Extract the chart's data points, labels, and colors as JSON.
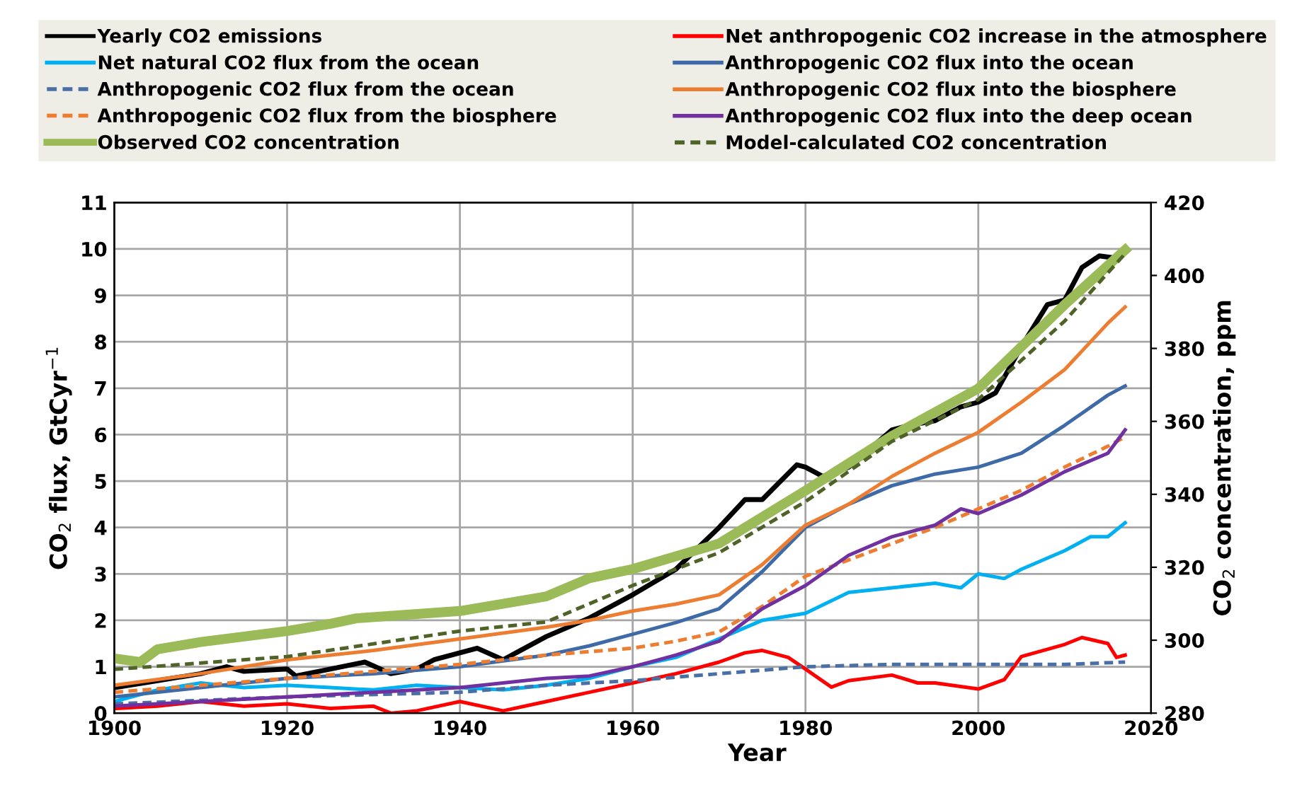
{
  "chart_data": {
    "type": "line",
    "xlabel": "Year",
    "ylabel": "CO$_{2}$ flux, GtCyr$^{−1}$",
    "y2label": "CO$_{2}$ concentration, ppm",
    "xlim": [
      1900,
      2020
    ],
    "xticks": [
      1900,
      1920,
      1940,
      1960,
      1980,
      2000,
      2020
    ],
    "ylim": [
      0,
      11
    ],
    "yticks": [
      0,
      1,
      2,
      3,
      4,
      5,
      6,
      7,
      8,
      9,
      10,
      11
    ],
    "y2lim": [
      280,
      420
    ],
    "y2ticks": [
      280,
      300,
      320,
      340,
      360,
      380,
      400,
      420
    ],
    "grid": true,
    "legend": "top",
    "marker": "none",
    "series": [
      {
        "name": "Yearly CO2 emissions",
        "color": "#000000",
        "line_style": "solid",
        "x": [
          1900,
          1905,
          1910,
          1913,
          1915,
          1920,
          1921,
          1925,
          1929,
          1932,
          1935,
          1937,
          1940,
          1942,
          1945,
          1947,
          1950,
          1955,
          1960,
          1965,
          1970,
          1973,
          1975,
          1979,
          1980,
          1982,
          1985,
          1990,
          1992,
          1995,
          1998,
          2000,
          2002,
          2005,
          2008,
          2010,
          2012,
          2014,
          2016,
          2017
        ],
        "values": [
          0.55,
          0.7,
          0.85,
          1.0,
          0.9,
          0.95,
          0.8,
          0.95,
          1.1,
          0.85,
          0.95,
          1.15,
          1.3,
          1.4,
          1.15,
          1.35,
          1.65,
          2.05,
          2.55,
          3.1,
          4.0,
          4.6,
          4.6,
          5.35,
          5.3,
          5.1,
          5.3,
          6.1,
          6.2,
          6.3,
          6.6,
          6.7,
          6.9,
          7.9,
          8.8,
          8.9,
          9.6,
          9.85,
          9.8,
          10.0
        ]
      },
      {
        "name": "Net anthropogenic CO2 increase in the atmosphere",
        "color": "#ff0000",
        "line_style": "solid",
        "x": [
          1900,
          1905,
          1910,
          1915,
          1920,
          1925,
          1930,
          1932,
          1935,
          1940,
          1945,
          1950,
          1955,
          1960,
          1965,
          1970,
          1973,
          1975,
          1978,
          1980,
          1983,
          1985,
          1990,
          1993,
          1995,
          2000,
          2003,
          2005,
          2010,
          2012,
          2015,
          2016,
          2017
        ],
        "values": [
          0.1,
          0.15,
          0.25,
          0.15,
          0.2,
          0.1,
          0.15,
          0.0,
          0.05,
          0.25,
          0.05,
          0.25,
          0.45,
          0.65,
          0.85,
          1.1,
          1.3,
          1.35,
          1.2,
          0.95,
          0.56,
          0.7,
          0.82,
          0.65,
          0.65,
          0.52,
          0.72,
          1.22,
          1.48,
          1.63,
          1.5,
          1.2,
          1.25
        ]
      },
      {
        "name": "Net natural CO2 flux from the ocean",
        "color": "#00b0f0",
        "line_style": "solid",
        "x": [
          1900,
          1905,
          1910,
          1915,
          1920,
          1925,
          1930,
          1935,
          1940,
          1945,
          1950,
          1955,
          1960,
          1965,
          1970,
          1975,
          1980,
          1985,
          1990,
          1995,
          1998,
          2000,
          2003,
          2005,
          2010,
          2013,
          2015,
          2017
        ],
        "values": [
          0.25,
          0.5,
          0.65,
          0.55,
          0.6,
          0.55,
          0.5,
          0.6,
          0.55,
          0.5,
          0.6,
          0.75,
          1.0,
          1.2,
          1.6,
          2.0,
          2.15,
          2.6,
          2.7,
          2.8,
          2.7,
          3.0,
          2.9,
          3.1,
          3.5,
          3.8,
          3.8,
          4.1
        ]
      },
      {
        "name": "Anthropogenic CO2 flux into the ocean",
        "color": "#3e6ba8",
        "line_style": "solid",
        "x": [
          1900,
          1910,
          1920,
          1930,
          1940,
          1950,
          1955,
          1960,
          1965,
          1970,
          1975,
          1980,
          1985,
          1990,
          1995,
          2000,
          2005,
          2010,
          2015,
          2017
        ],
        "values": [
          0.35,
          0.55,
          0.75,
          0.85,
          1.0,
          1.25,
          1.45,
          1.7,
          1.95,
          2.25,
          3.05,
          4.0,
          4.5,
          4.9,
          5.15,
          5.3,
          5.6,
          6.2,
          6.85,
          7.05
        ]
      },
      {
        "name": "Anthropogenic CO2 flux from the ocean",
        "color": "#4a6fa5",
        "line_style": "dashed",
        "x": [
          1900,
          1920,
          1940,
          1950,
          1960,
          1970,
          1980,
          1990,
          2000,
          2010,
          2017
        ],
        "values": [
          0.2,
          0.35,
          0.45,
          0.6,
          0.7,
          0.85,
          1.0,
          1.05,
          1.05,
          1.05,
          1.1
        ]
      },
      {
        "name": "Anthropogenic CO2 flux into the biosphere",
        "color": "#ed7d31",
        "line_style": "solid",
        "x": [
          1900,
          1910,
          1920,
          1930,
          1940,
          1950,
          1955,
          1960,
          1965,
          1970,
          1975,
          1980,
          1985,
          1990,
          1995,
          2000,
          2005,
          2010,
          2015,
          2017
        ],
        "values": [
          0.6,
          0.85,
          1.15,
          1.35,
          1.6,
          1.85,
          2.0,
          2.2,
          2.35,
          2.55,
          3.2,
          4.05,
          4.5,
          5.1,
          5.6,
          6.05,
          6.7,
          7.4,
          8.4,
          8.75
        ]
      },
      {
        "name": "Anthropogenic CO2 flux from the biosphere",
        "color": "#ed7d31",
        "line_style": "dashed",
        "x": [
          1900,
          1910,
          1920,
          1930,
          1940,
          1950,
          1960,
          1965,
          1970,
          1975,
          1980,
          1985,
          1990,
          1995,
          2000,
          2005,
          2010,
          2015,
          2017
        ],
        "values": [
          0.45,
          0.6,
          0.75,
          0.9,
          1.05,
          1.25,
          1.4,
          1.55,
          1.75,
          2.3,
          2.95,
          3.3,
          3.65,
          4.0,
          4.4,
          4.8,
          5.3,
          5.75,
          5.95
        ]
      },
      {
        "name": "Anthropogenic CO2 flux into the deep ocean",
        "color": "#7030a0",
        "line_style": "solid",
        "x": [
          1900,
          1910,
          1920,
          1930,
          1940,
          1950,
          1955,
          1960,
          1965,
          1970,
          1975,
          1980,
          1985,
          1990,
          1995,
          1998,
          2000,
          2005,
          2010,
          2015,
          2017
        ],
        "values": [
          0.15,
          0.25,
          0.35,
          0.45,
          0.55,
          0.75,
          0.8,
          1.0,
          1.25,
          1.55,
          2.25,
          2.75,
          3.4,
          3.8,
          4.05,
          4.4,
          4.3,
          4.7,
          5.2,
          5.6,
          6.1
        ]
      },
      {
        "name": "Observed CO2 concentration",
        "color": "#9bbb59",
        "line_style": "solid",
        "axis": "y2",
        "x": [
          1900,
          1903,
          1905,
          1910,
          1920,
          1925,
          1928,
          1940,
          1950,
          1955,
          1960,
          1970,
          1980,
          1990,
          2000,
          2010,
          2017
        ],
        "values": [
          295,
          294,
          297.5,
          299.5,
          302.5,
          304.5,
          306,
          308,
          312,
          317,
          319.5,
          326.5,
          341,
          356,
          369,
          392,
          407
        ]
      },
      {
        "name": "Model-calculated CO2 concentration",
        "color": "#4f6228",
        "line_style": "dashed",
        "axis": "y2",
        "x": [
          1900,
          1920,
          1940,
          1950,
          1960,
          1970,
          1980,
          1990,
          2000,
          2010,
          2017
        ],
        "values": [
          292,
          295.5,
          302.5,
          305,
          315,
          324,
          338,
          354.5,
          366,
          387.5,
          406
        ]
      }
    ]
  }
}
